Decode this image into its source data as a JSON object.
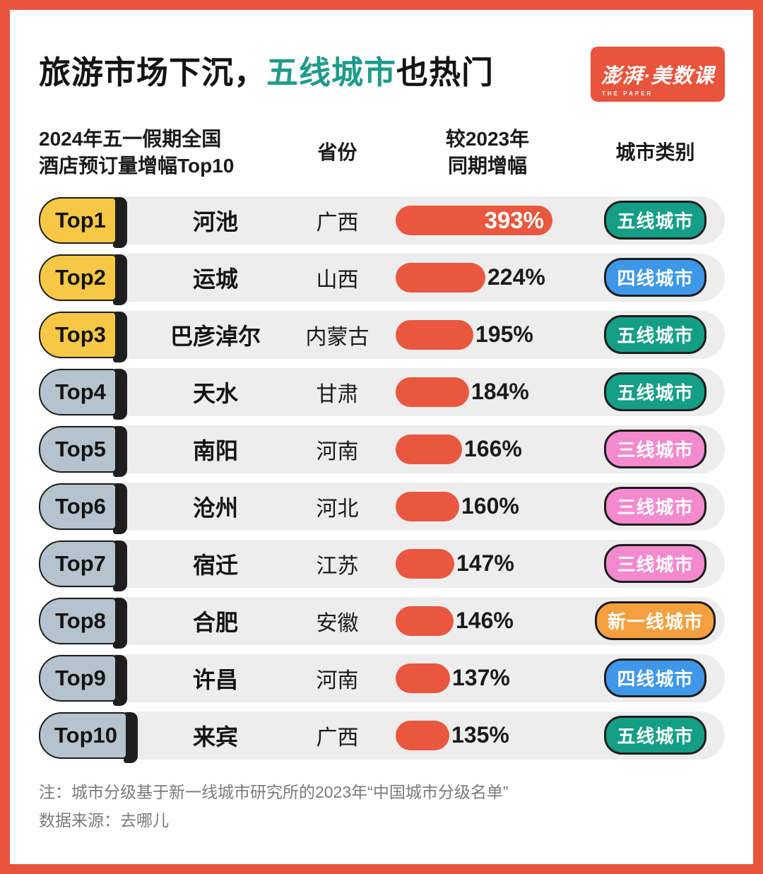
{
  "title": {
    "prefix": "旅游市场下沉，",
    "highlight": "五线城市",
    "suffix": "也热门"
  },
  "logo": {
    "main": "澎湃·美数课",
    "sub": "THE PAPER"
  },
  "table": {
    "headers": {
      "rank_city": "2024年五一假期全国\n酒店预订量增幅Top10",
      "province": "省份",
      "growth": "较2023年\n同期增幅",
      "category": "城市类别"
    },
    "rows": [
      {
        "rank": "Top1",
        "city": "河池",
        "province": "广西",
        "growth_pct": 393,
        "growth_label": "393%",
        "category": "五线城市",
        "category_color": "teal",
        "rank_style": "gold",
        "label_position": "inside"
      },
      {
        "rank": "Top2",
        "city": "运城",
        "province": "山西",
        "growth_pct": 224,
        "growth_label": "224%",
        "category": "四线城市",
        "category_color": "blue",
        "rank_style": "gold",
        "label_position": "outside"
      },
      {
        "rank": "Top3",
        "city": "巴彦淖尔",
        "province": "内蒙古",
        "growth_pct": 195,
        "growth_label": "195%",
        "category": "五线城市",
        "category_color": "teal",
        "rank_style": "gold",
        "label_position": "outside"
      },
      {
        "rank": "Top4",
        "city": "天水",
        "province": "甘肃",
        "growth_pct": 184,
        "growth_label": "184%",
        "category": "五线城市",
        "category_color": "teal",
        "rank_style": "gray",
        "label_position": "outside"
      },
      {
        "rank": "Top5",
        "city": "南阳",
        "province": "河南",
        "growth_pct": 166,
        "growth_label": "166%",
        "category": "三线城市",
        "category_color": "pink",
        "rank_style": "gray",
        "label_position": "outside"
      },
      {
        "rank": "Top6",
        "city": "沧州",
        "province": "河北",
        "growth_pct": 160,
        "growth_label": "160%",
        "category": "三线城市",
        "category_color": "pink",
        "rank_style": "gray",
        "label_position": "outside"
      },
      {
        "rank": "Top7",
        "city": "宿迁",
        "province": "江苏",
        "growth_pct": 147,
        "growth_label": "147%",
        "category": "三线城市",
        "category_color": "pink",
        "rank_style": "gray",
        "label_position": "outside"
      },
      {
        "rank": "Top8",
        "city": "合肥",
        "province": "安徽",
        "growth_pct": 146,
        "growth_label": "146%",
        "category": "新一线城市",
        "category_color": "orange",
        "rank_style": "gray",
        "label_position": "outside"
      },
      {
        "rank": "Top9",
        "city": "许昌",
        "province": "河南",
        "growth_pct": 137,
        "growth_label": "137%",
        "category": "四线城市",
        "category_color": "blue",
        "rank_style": "gray",
        "label_position": "outside"
      },
      {
        "rank": "Top10",
        "city": "来宾",
        "province": "广西",
        "growth_pct": 135,
        "growth_label": "135%",
        "category": "五线城市",
        "category_color": "teal",
        "rank_style": "gray",
        "label_position": "outside"
      }
    ]
  },
  "colors": {
    "frame_red": "#E8543C",
    "bar_red": "#E9573F",
    "title_teal": "#1F9C88",
    "rank_gold": "#F7C845",
    "rank_gray": "#B4C3CD",
    "row_bg": "#EDEDED",
    "category": {
      "teal": "#159E86",
      "blue": "#3E97E9",
      "pink": "#F38ACD",
      "orange": "#F5A040"
    }
  },
  "notes": {
    "line1": "注：城市分级基于新一线城市研究所的2023年“中国城市分级名单”",
    "line2": "数据来源：去哪儿"
  },
  "chart_data": {
    "type": "bar",
    "title": "2024年五一假期全国酒店预订量增幅Top10",
    "series_label": "较2023年同期增幅",
    "categories": [
      "河池",
      "运城",
      "巴彦淖尔",
      "天水",
      "南阳",
      "沧州",
      "宿迁",
      "合肥",
      "许昌",
      "来宾"
    ],
    "values": [
      393,
      224,
      195,
      184,
      166,
      160,
      147,
      146,
      137,
      135
    ],
    "unit": "%",
    "provinces": [
      "广西",
      "山西",
      "内蒙古",
      "甘肃",
      "河南",
      "河北",
      "江苏",
      "安徽",
      "河南",
      "广西"
    ],
    "city_tiers": [
      "五线城市",
      "四线城市",
      "五线城市",
      "五线城市",
      "三线城市",
      "三线城市",
      "三线城市",
      "新一线城市",
      "四线城市",
      "五线城市"
    ],
    "orientation": "horizontal",
    "xlim": [
      0,
      400
    ]
  }
}
